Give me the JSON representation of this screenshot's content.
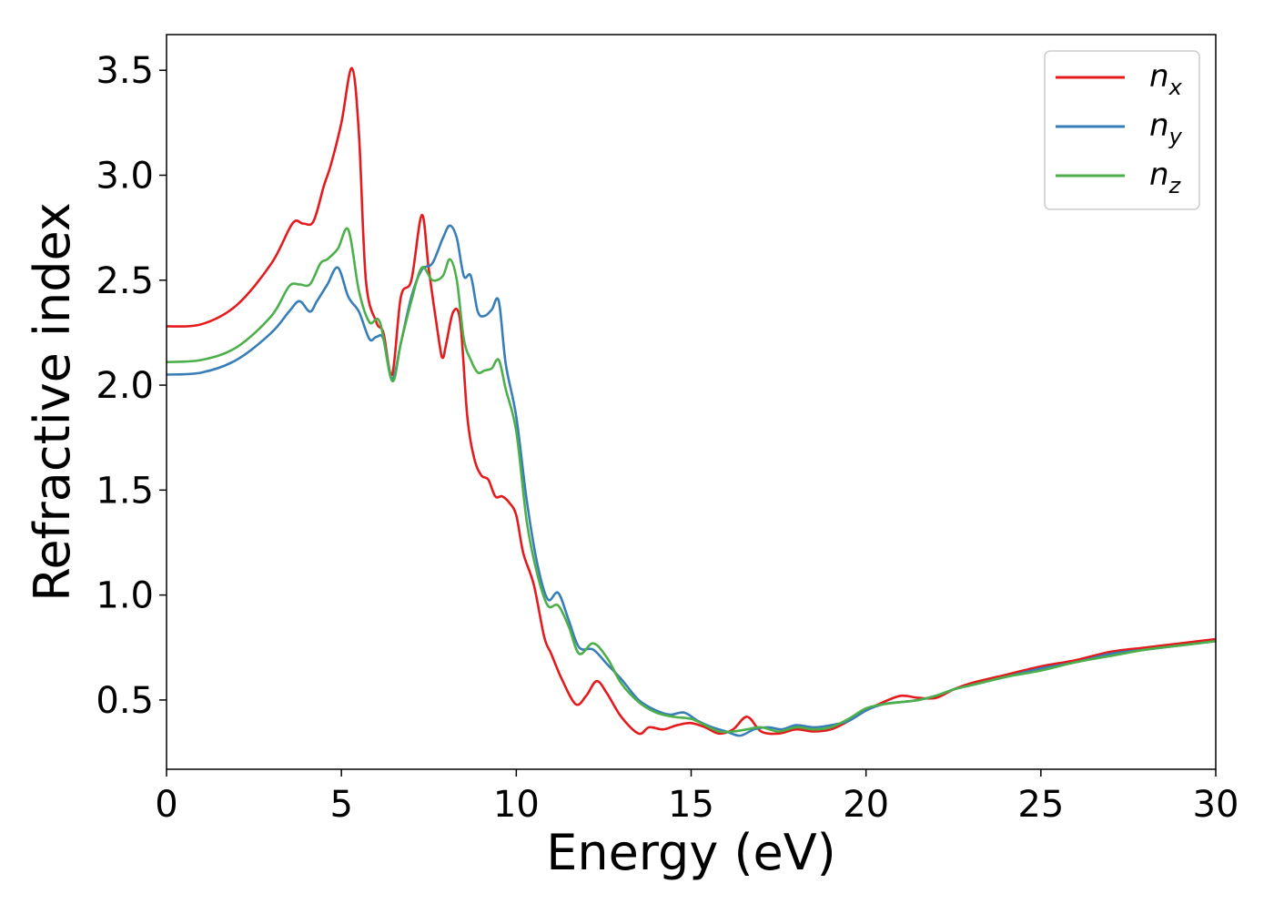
{
  "chart_data": {
    "type": "line",
    "title": "",
    "xlabel": "Energy (eV)",
    "ylabel": "Refractive index",
    "xlim": [
      0,
      30
    ],
    "ylim": [
      0.17,
      3.67
    ],
    "xticks": [
      0,
      5,
      10,
      15,
      20,
      25,
      30
    ],
    "yticks": [
      0.5,
      1.0,
      1.5,
      2.0,
      2.5,
      3.0,
      3.5
    ],
    "xtick_labels": [
      "0",
      "5",
      "10",
      "15",
      "20",
      "25",
      "30"
    ],
    "ytick_labels": [
      "0.5",
      "1.0",
      "1.5",
      "2.0",
      "2.5",
      "3.0",
      "3.5"
    ],
    "grid": false,
    "legend_position": "top-right",
    "series": [
      {
        "name": "n_x",
        "label_base": "n",
        "label_sub": "x",
        "color": "#e41a1c",
        "points": [
          [
            0,
            2.28
          ],
          [
            1,
            2.29
          ],
          [
            2,
            2.38
          ],
          [
            3,
            2.58
          ],
          [
            3.6,
            2.77
          ],
          [
            3.9,
            2.77
          ],
          [
            4.2,
            2.78
          ],
          [
            4.5,
            2.95
          ],
          [
            4.7,
            3.05
          ],
          [
            5.0,
            3.25
          ],
          [
            5.3,
            3.51
          ],
          [
            5.5,
            3.2
          ],
          [
            5.7,
            2.5
          ],
          [
            6.0,
            2.3
          ],
          [
            6.2,
            2.25
          ],
          [
            6.45,
            2.05
          ],
          [
            6.7,
            2.42
          ],
          [
            7.0,
            2.5
          ],
          [
            7.3,
            2.81
          ],
          [
            7.5,
            2.55
          ],
          [
            7.8,
            2.2
          ],
          [
            7.9,
            2.13
          ],
          [
            8.0,
            2.2
          ],
          [
            8.2,
            2.35
          ],
          [
            8.4,
            2.3
          ],
          [
            8.6,
            1.85
          ],
          [
            8.8,
            1.65
          ],
          [
            9.0,
            1.57
          ],
          [
            9.2,
            1.55
          ],
          [
            9.4,
            1.47
          ],
          [
            9.6,
            1.47
          ],
          [
            9.8,
            1.44
          ],
          [
            10.0,
            1.38
          ],
          [
            10.2,
            1.2
          ],
          [
            10.5,
            1.05
          ],
          [
            10.8,
            0.8
          ],
          [
            11.0,
            0.72
          ],
          [
            11.3,
            0.6
          ],
          [
            11.7,
            0.48
          ],
          [
            12.0,
            0.52
          ],
          [
            12.3,
            0.59
          ],
          [
            12.6,
            0.53
          ],
          [
            13.0,
            0.42
          ],
          [
            13.5,
            0.34
          ],
          [
            13.8,
            0.37
          ],
          [
            14.2,
            0.36
          ],
          [
            14.6,
            0.38
          ],
          [
            15.0,
            0.39
          ],
          [
            15.4,
            0.37
          ],
          [
            15.8,
            0.34
          ],
          [
            16.2,
            0.36
          ],
          [
            16.6,
            0.42
          ],
          [
            17.0,
            0.35
          ],
          [
            17.5,
            0.34
          ],
          [
            18.0,
            0.36
          ],
          [
            18.5,
            0.35
          ],
          [
            19.0,
            0.36
          ],
          [
            19.5,
            0.4
          ],
          [
            20.0,
            0.45
          ],
          [
            20.5,
            0.49
          ],
          [
            21.0,
            0.52
          ],
          [
            21.5,
            0.51
          ],
          [
            22.0,
            0.51
          ],
          [
            22.5,
            0.55
          ],
          [
            23.0,
            0.58
          ],
          [
            24.0,
            0.62
          ],
          [
            25.0,
            0.66
          ],
          [
            26.0,
            0.69
          ],
          [
            27.0,
            0.73
          ],
          [
            28.0,
            0.75
          ],
          [
            29.0,
            0.77
          ],
          [
            30.0,
            0.79
          ]
        ]
      },
      {
        "name": "n_y",
        "label_base": "n",
        "label_sub": "y",
        "color": "#377eb8",
        "points": [
          [
            0,
            2.05
          ],
          [
            1,
            2.06
          ],
          [
            2,
            2.12
          ],
          [
            3,
            2.25
          ],
          [
            3.5,
            2.35
          ],
          [
            3.8,
            2.4
          ],
          [
            4.1,
            2.35
          ],
          [
            4.3,
            2.4
          ],
          [
            4.6,
            2.48
          ],
          [
            4.9,
            2.56
          ],
          [
            5.2,
            2.42
          ],
          [
            5.5,
            2.35
          ],
          [
            5.8,
            2.22
          ],
          [
            6.0,
            2.23
          ],
          [
            6.2,
            2.22
          ],
          [
            6.45,
            2.03
          ],
          [
            6.7,
            2.2
          ],
          [
            7.0,
            2.42
          ],
          [
            7.3,
            2.55
          ],
          [
            7.6,
            2.58
          ],
          [
            7.9,
            2.7
          ],
          [
            8.1,
            2.76
          ],
          [
            8.3,
            2.7
          ],
          [
            8.5,
            2.52
          ],
          [
            8.7,
            2.52
          ],
          [
            8.9,
            2.35
          ],
          [
            9.1,
            2.33
          ],
          [
            9.3,
            2.36
          ],
          [
            9.5,
            2.4
          ],
          [
            9.7,
            2.1
          ],
          [
            10.0,
            1.85
          ],
          [
            10.3,
            1.45
          ],
          [
            10.6,
            1.15
          ],
          [
            10.9,
            0.98
          ],
          [
            11.2,
            1.01
          ],
          [
            11.5,
            0.88
          ],
          [
            11.8,
            0.75
          ],
          [
            12.2,
            0.74
          ],
          [
            12.6,
            0.67
          ],
          [
            13.0,
            0.6
          ],
          [
            13.5,
            0.5
          ],
          [
            14.0,
            0.45
          ],
          [
            14.4,
            0.43
          ],
          [
            14.8,
            0.44
          ],
          [
            15.2,
            0.4
          ],
          [
            15.6,
            0.37
          ],
          [
            16.0,
            0.35
          ],
          [
            16.4,
            0.33
          ],
          [
            16.8,
            0.36
          ],
          [
            17.2,
            0.37
          ],
          [
            17.6,
            0.36
          ],
          [
            18.0,
            0.38
          ],
          [
            18.5,
            0.37
          ],
          [
            19.0,
            0.38
          ],
          [
            19.5,
            0.4
          ],
          [
            20.0,
            0.45
          ],
          [
            20.5,
            0.48
          ],
          [
            21.0,
            0.49
          ],
          [
            21.5,
            0.5
          ],
          [
            22.0,
            0.52
          ],
          [
            22.5,
            0.55
          ],
          [
            23.0,
            0.57
          ],
          [
            24.0,
            0.61
          ],
          [
            25.0,
            0.65
          ],
          [
            26.0,
            0.68
          ],
          [
            27.0,
            0.72
          ],
          [
            28.0,
            0.74
          ],
          [
            29.0,
            0.76
          ],
          [
            30.0,
            0.78
          ]
        ]
      },
      {
        "name": "n_z",
        "label_base": "n",
        "label_sub": "z",
        "color": "#4daf4a",
        "points": [
          [
            0,
            2.11
          ],
          [
            1,
            2.12
          ],
          [
            2,
            2.18
          ],
          [
            3,
            2.33
          ],
          [
            3.5,
            2.47
          ],
          [
            3.8,
            2.48
          ],
          [
            4.1,
            2.48
          ],
          [
            4.4,
            2.58
          ],
          [
            4.6,
            2.6
          ],
          [
            4.9,
            2.65
          ],
          [
            5.2,
            2.74
          ],
          [
            5.5,
            2.45
          ],
          [
            5.8,
            2.3
          ],
          [
            6.1,
            2.3
          ],
          [
            6.45,
            2.02
          ],
          [
            6.7,
            2.2
          ],
          [
            7.0,
            2.4
          ],
          [
            7.3,
            2.56
          ],
          [
            7.6,
            2.5
          ],
          [
            7.9,
            2.52
          ],
          [
            8.1,
            2.6
          ],
          [
            8.3,
            2.5
          ],
          [
            8.5,
            2.22
          ],
          [
            8.7,
            2.12
          ],
          [
            8.9,
            2.06
          ],
          [
            9.1,
            2.07
          ],
          [
            9.3,
            2.08
          ],
          [
            9.5,
            2.12
          ],
          [
            9.7,
            1.98
          ],
          [
            10.0,
            1.78
          ],
          [
            10.3,
            1.35
          ],
          [
            10.6,
            1.1
          ],
          [
            10.9,
            0.95
          ],
          [
            11.2,
            0.95
          ],
          [
            11.5,
            0.85
          ],
          [
            11.8,
            0.72
          ],
          [
            12.2,
            0.77
          ],
          [
            12.6,
            0.7
          ],
          [
            13.0,
            0.58
          ],
          [
            13.5,
            0.49
          ],
          [
            14.0,
            0.44
          ],
          [
            14.5,
            0.42
          ],
          [
            15.0,
            0.41
          ],
          [
            15.4,
            0.38
          ],
          [
            15.8,
            0.35
          ],
          [
            16.2,
            0.35
          ],
          [
            16.6,
            0.36
          ],
          [
            17.0,
            0.37
          ],
          [
            17.5,
            0.35
          ],
          [
            18.0,
            0.37
          ],
          [
            18.5,
            0.36
          ],
          [
            19.0,
            0.37
          ],
          [
            19.5,
            0.41
          ],
          [
            20.0,
            0.46
          ],
          [
            20.5,
            0.48
          ],
          [
            21.0,
            0.49
          ],
          [
            21.5,
            0.5
          ],
          [
            22.0,
            0.52
          ],
          [
            22.5,
            0.55
          ],
          [
            23.0,
            0.57
          ],
          [
            24.0,
            0.61
          ],
          [
            25.0,
            0.64
          ],
          [
            26.0,
            0.68
          ],
          [
            27.0,
            0.71
          ],
          [
            28.0,
            0.74
          ],
          [
            29.0,
            0.76
          ],
          [
            30.0,
            0.78
          ]
        ]
      }
    ]
  }
}
